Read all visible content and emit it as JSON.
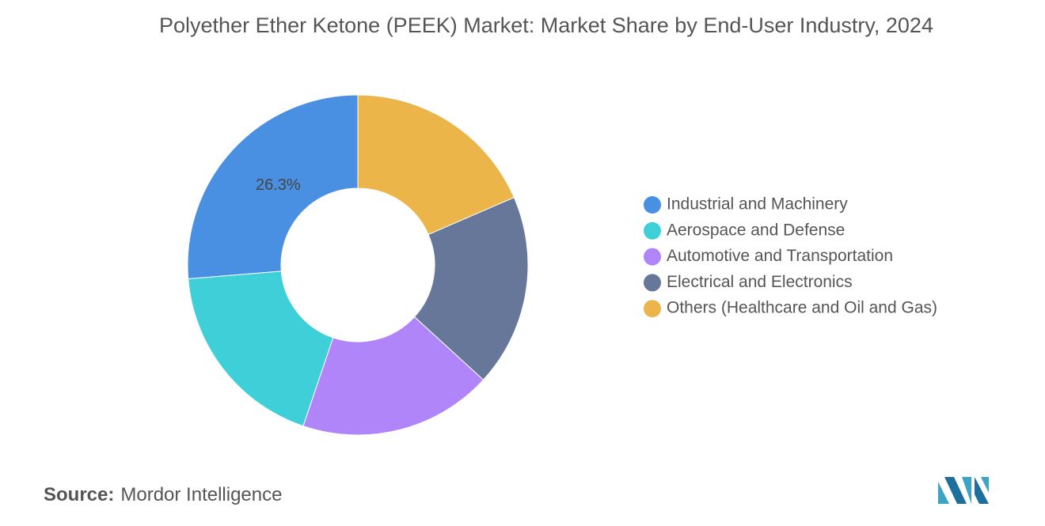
{
  "chart_data": {
    "type": "donut",
    "title": "Polyether Ether Ketone (PEEK) Market: Market Share by End-User Industry, 2024",
    "categories": [
      "Industrial and Machinery",
      "Aerospace and Defense",
      "Automotive and Transportation",
      "Electrical and Electronics",
      "Others (Healthcare and Oil and Gas)"
    ],
    "values": [
      26.3,
      18.5,
      18.4,
      18.3,
      18.5
    ],
    "value_labels": [
      "26.3%",
      null,
      null,
      null,
      null
    ],
    "colors": [
      "#4a90e2",
      "#3ecfd8",
      "#b185fa",
      "#667799",
      "#ebb54a"
    ],
    "legend": "right"
  },
  "source_label": "Source:",
  "source": "Mordor Intelligence"
}
